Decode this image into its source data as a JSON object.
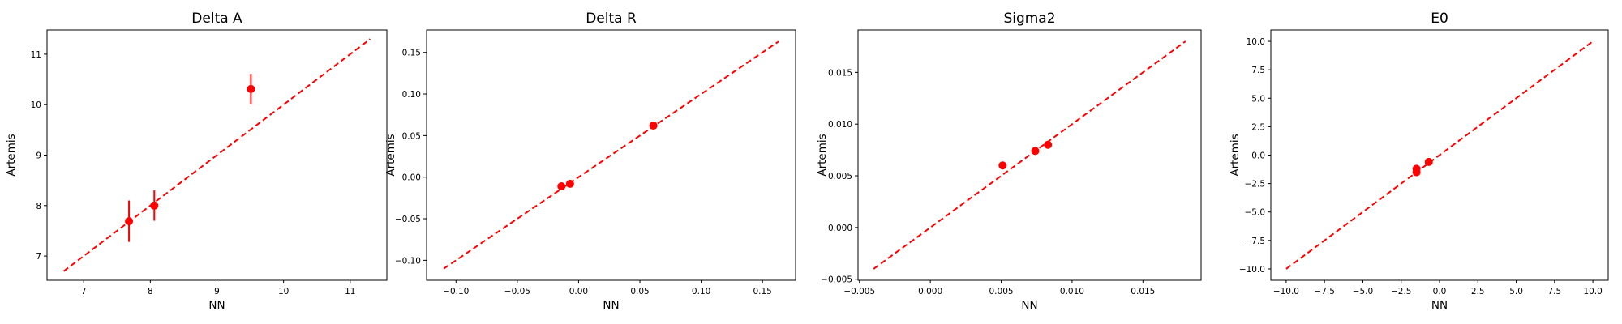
{
  "colors": {
    "marker": "#ff0000",
    "line": "#ff0000"
  },
  "chart_data": [
    {
      "type": "scatter",
      "title": "Delta A",
      "xlabel": "NN",
      "ylabel": "Artemis",
      "xlim": [
        6.45,
        11.55
      ],
      "ylim": [
        6.52,
        11.48
      ],
      "xticks": [
        7,
        8,
        9,
        10,
        11
      ],
      "xtick_labels": [
        "7",
        "8",
        "9",
        "10",
        "11"
      ],
      "yticks": [
        7,
        8,
        9,
        10,
        11
      ],
      "ytick_labels": [
        "7",
        "8",
        "9",
        "10",
        "11"
      ],
      "identity_line": [
        6.7,
        11.3
      ],
      "points": [
        {
          "x": 7.68,
          "y": 7.69,
          "yerr": 0.41
        },
        {
          "x": 8.06,
          "y": 8.0,
          "yerr": 0.3
        },
        {
          "x": 9.51,
          "y": 10.31,
          "yerr": 0.3
        }
      ],
      "grid": false,
      "legend": "none"
    },
    {
      "type": "scatter",
      "title": "Delta R",
      "xlabel": "NN",
      "ylabel": "Artemis",
      "xlim": [
        -0.124,
        0.177
      ],
      "ylim": [
        -0.124,
        0.177
      ],
      "xticks": [
        -0.1,
        -0.05,
        0.0,
        0.05,
        0.1,
        0.15
      ],
      "xtick_labels": [
        "−0.10",
        "−0.05",
        "0.00",
        "0.05",
        "0.10",
        "0.15"
      ],
      "yticks": [
        -0.1,
        -0.05,
        0.0,
        0.05,
        0.1,
        0.15
      ],
      "ytick_labels": [
        "−0.10",
        "−0.05",
        "0.00",
        "0.05",
        "0.10",
        "0.15"
      ],
      "identity_line": [
        -0.11,
        0.163
      ],
      "points": [
        {
          "x": -0.014,
          "y": -0.011,
          "yerr": 0
        },
        {
          "x": -0.007,
          "y": -0.008,
          "yerr": 0
        },
        {
          "x": 0.061,
          "y": 0.062,
          "yerr": 0
        }
      ],
      "grid": false,
      "legend": "none"
    },
    {
      "type": "scatter",
      "title": "Sigma2",
      "xlabel": "NN",
      "ylabel": "Artemis",
      "xlim": [
        -0.0051,
        0.0191
      ],
      "ylim": [
        -0.0051,
        0.0191
      ],
      "xticks": [
        -0.005,
        0.0,
        0.005,
        0.01,
        0.015
      ],
      "xtick_labels": [
        "−0.005",
        "0.000",
        "0.005",
        "0.010",
        "0.015"
      ],
      "yticks": [
        -0.005,
        0.0,
        0.005,
        0.01,
        0.015
      ],
      "ytick_labels": [
        "−0.005",
        "0.000",
        "0.005",
        "0.010",
        "0.015"
      ],
      "identity_line": [
        -0.004,
        0.018
      ],
      "points": [
        {
          "x": 0.0051,
          "y": 0.006,
          "yerr": 0
        },
        {
          "x": 0.0074,
          "y": 0.0074,
          "yerr": 0
        },
        {
          "x": 0.0083,
          "y": 0.008,
          "yerr": 0
        }
      ],
      "grid": false,
      "legend": "none"
    },
    {
      "type": "scatter",
      "title": "E0",
      "xlabel": "NN",
      "ylabel": "Artemis",
      "xlim": [
        -11.0,
        11.0
      ],
      "ylim": [
        -11.0,
        11.0
      ],
      "xticks": [
        -10,
        -7.5,
        -5,
        -2.5,
        0,
        2.5,
        5,
        7.5,
        10
      ],
      "xtick_labels": [
        "−10.0",
        "−7.5",
        "−5.0",
        "−2.5",
        "0.0",
        "2.5",
        "5.0",
        "7.5",
        "10.0"
      ],
      "yticks": [
        -10,
        -7.5,
        -5,
        -2.5,
        0,
        2.5,
        5,
        7.5,
        10
      ],
      "ytick_labels": [
        "−10.0",
        "−7.5",
        "−5.0",
        "−2.5",
        "0.0",
        "2.5",
        "5.0",
        "7.5",
        "10.0"
      ],
      "identity_line": [
        -10,
        10
      ],
      "points": [
        {
          "x": -1.5,
          "y": -1.2,
          "yerr": 0
        },
        {
          "x": -1.5,
          "y": -1.5,
          "yerr": 0
        },
        {
          "x": -0.7,
          "y": -0.6,
          "yerr": 0
        }
      ],
      "grid": false,
      "legend": "none"
    }
  ]
}
